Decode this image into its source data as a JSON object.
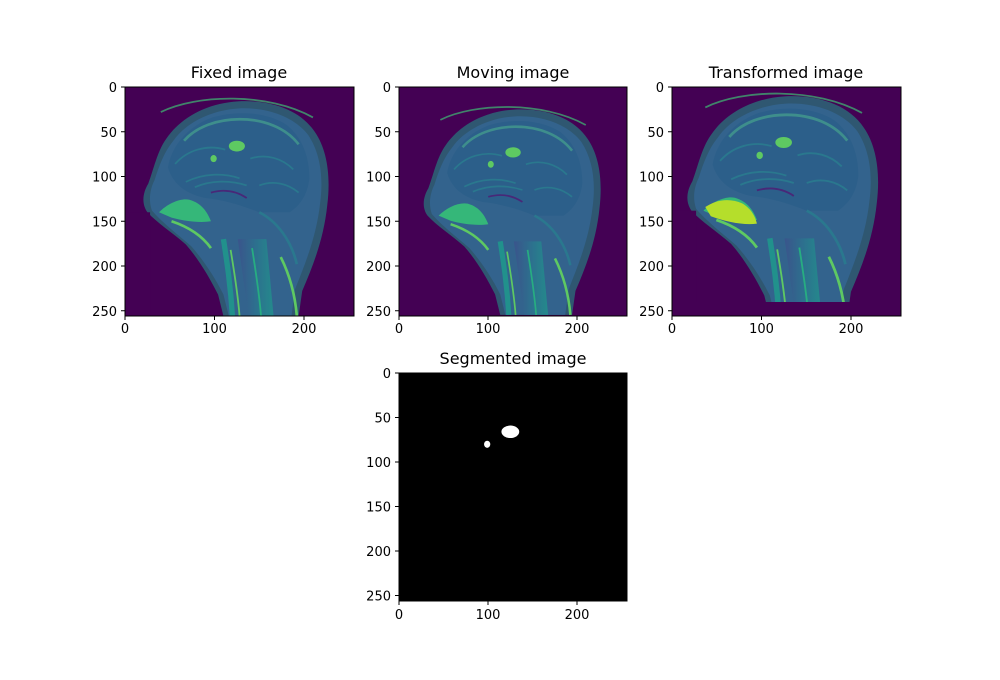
{
  "colors": {
    "background": "#ffffff",
    "viridis_low": "#440154",
    "viridis_mid": "#3b528b",
    "viridis_teal": "#21918c",
    "viridis_green": "#5ec962",
    "viridis_high": "#fde725",
    "mask_background": "#000000",
    "mask_foreground": "#ffffff"
  },
  "chart_data": [
    {
      "type": "heatmap",
      "title": "Fixed image",
      "colormap": "viridis",
      "content": "sagittal brain MRI slice",
      "image_size": [
        256,
        256
      ],
      "xlim": [
        0,
        256
      ],
      "ylim": [
        256,
        0
      ],
      "xticks": [
        0,
        100,
        200
      ],
      "yticks": [
        0,
        50,
        100,
        150,
        200,
        250
      ],
      "grid": false
    },
    {
      "type": "heatmap",
      "title": "Moving image",
      "colormap": "viridis",
      "content": "sagittal brain MRI slice",
      "image_size": [
        256,
        256
      ],
      "xlim": [
        0,
        256
      ],
      "ylim": [
        256,
        0
      ],
      "xticks": [
        0,
        100,
        200
      ],
      "yticks": [
        0,
        50,
        100,
        150,
        200,
        250
      ],
      "grid": false
    },
    {
      "type": "heatmap",
      "title": "Transformed image",
      "colormap": "viridis",
      "content": "sagittal brain MRI slice registered to fixed image",
      "image_size": [
        256,
        256
      ],
      "xlim": [
        0,
        256
      ],
      "ylim": [
        256,
        0
      ],
      "xticks": [
        0,
        100,
        200
      ],
      "yticks": [
        0,
        50,
        100,
        150,
        200,
        250
      ],
      "grid": false
    },
    {
      "type": "heatmap",
      "title": "Segmented image",
      "colormap": "gray",
      "content": "binary segmentation mask",
      "image_size": [
        256,
        256
      ],
      "xlim": [
        0,
        256
      ],
      "ylim": [
        256,
        0
      ],
      "xticks": [
        0,
        100,
        200
      ],
      "yticks": [
        0,
        50,
        100,
        150,
        200,
        250
      ],
      "grid": false,
      "regions": [
        {
          "center": [
            125,
            66
          ],
          "extent": [
            20,
            14
          ]
        },
        {
          "center": [
            99,
            80
          ],
          "extent": [
            7,
            8
          ]
        }
      ]
    }
  ]
}
